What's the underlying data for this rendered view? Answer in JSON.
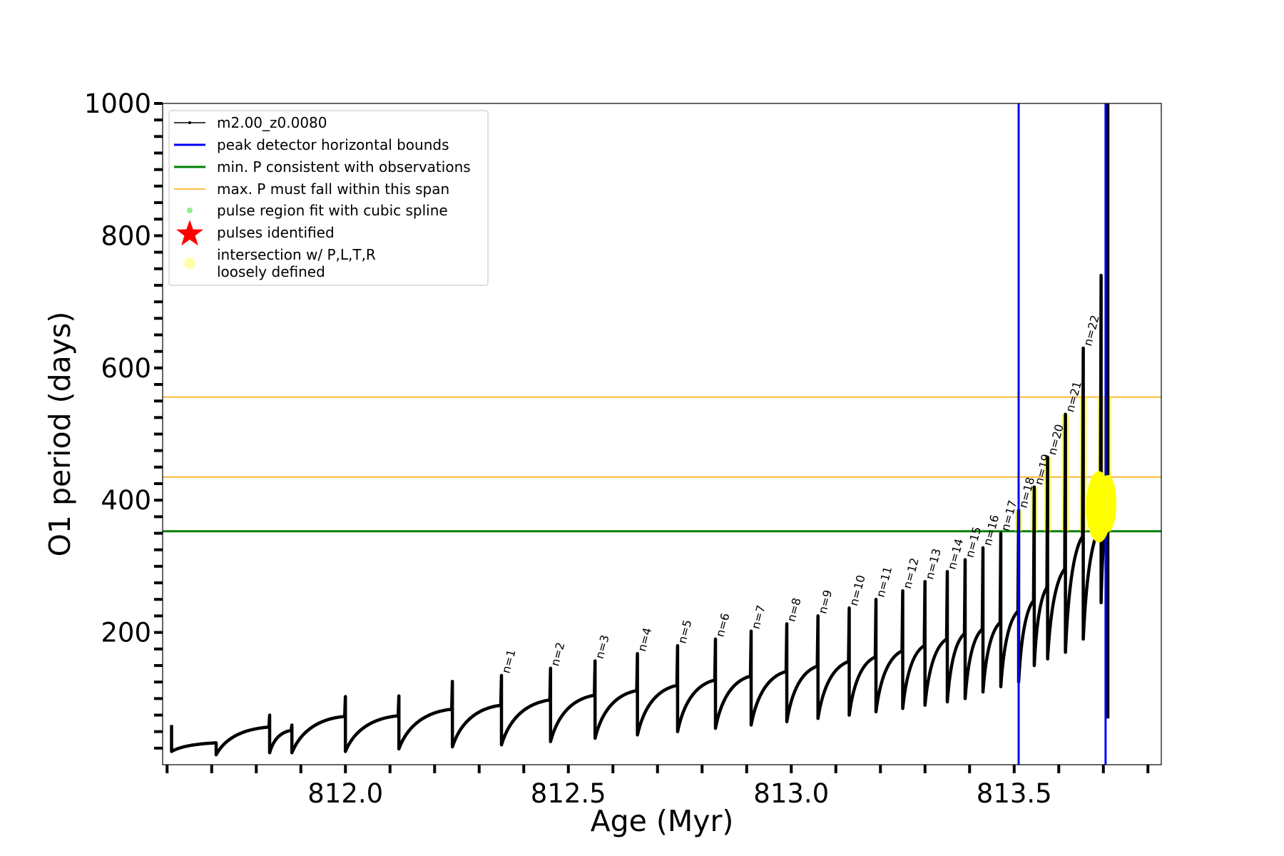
{
  "chart_data": {
    "type": "line",
    "title": "",
    "xlabel": "Age (Myr)",
    "ylabel": "O1 period (days)",
    "xlim": [
      811.59,
      813.83
    ],
    "ylim": [
      0,
      1000
    ],
    "xticks": [
      811.6,
      811.7,
      811.8,
      811.9,
      812.0,
      812.1,
      812.2,
      812.3,
      812.4,
      812.5,
      812.6,
      812.7,
      812.8,
      812.9,
      813.0,
      813.1,
      813.2,
      813.3,
      813.4,
      813.5,
      813.6,
      813.7,
      813.8
    ],
    "xtick_labels": [
      {
        "value": 812.0,
        "label": "812.0"
      },
      {
        "value": 812.5,
        "label": "812.5"
      },
      {
        "value": 813.0,
        "label": "813.0"
      },
      {
        "value": 813.5,
        "label": "813.5"
      }
    ],
    "yticks": [
      25,
      50,
      75,
      100,
      125,
      150,
      175,
      200,
      225,
      250,
      275,
      300,
      325,
      350,
      375,
      400,
      425,
      450,
      475,
      500,
      525,
      550,
      575,
      600,
      625,
      650,
      675,
      700,
      725,
      750,
      775,
      800,
      825,
      850,
      875,
      900,
      925,
      950,
      975,
      1000
    ],
    "ytick_labels": [
      {
        "value": 200,
        "label": "200"
      },
      {
        "value": 400,
        "label": "400"
      },
      {
        "value": 600,
        "label": "600"
      },
      {
        "value": 800,
        "label": "800"
      },
      {
        "value": 1000,
        "label": "1000"
      }
    ],
    "grid": false,
    "legend_position": "top-left",
    "colors": {
      "track": "#000000",
      "bounds": "#0000ff",
      "min_p": "#008000",
      "max_p": "#ffa500",
      "spline": "#90ee90",
      "pulse": "#ff0000",
      "loose": "#ffff00"
    },
    "legend": [
      {
        "label": "m2.00_z0.0080",
        "marker": "line-dot",
        "color": "#000000"
      },
      {
        "label": "peak detector horizontal bounds",
        "marker": "line-thick",
        "color": "#0000ff"
      },
      {
        "label": "min. P consistent with observations",
        "marker": "line-thick",
        "color": "#008000"
      },
      {
        "label": "max. P must fall within this span",
        "marker": "line-thin",
        "color": "#ffa500"
      },
      {
        "label": "pulse region fit with cubic spline",
        "marker": "dot",
        "color": "#90ee90"
      },
      {
        "label": "pulses identified",
        "marker": "star",
        "color": "#ff0000"
      },
      {
        "label": "intersection w/ P,L,T,R",
        "label2": "loosely defined",
        "marker": "circle",
        "color": "#ffffaa"
      }
    ],
    "vlines": [
      813.51,
      813.705
    ],
    "hlines_min_p": [
      353
    ],
    "hlines_max_p": [
      435,
      556
    ],
    "pulses": [
      {
        "x": 811.61,
        "peak": 60,
        "min": 20,
        "end": 33
      },
      {
        "x": 811.71,
        "peak": 33,
        "min": 15,
        "end": 57
      },
      {
        "x": 811.83,
        "peak": 75,
        "min": 18,
        "end": 52
      },
      {
        "x": 811.88,
        "peak": 60,
        "min": 18,
        "end": 73
      },
      {
        "x": 812.0,
        "peak": 103,
        "min": 20,
        "end": 74
      },
      {
        "x": 812.12,
        "peak": 104,
        "min": 24,
        "end": 84
      },
      {
        "x": 812.24,
        "peak": 126,
        "min": 27,
        "end": 90
      },
      {
        "x": 812.35,
        "peak": 135,
        "min": 30,
        "end": 98,
        "label": "n=1"
      },
      {
        "x": 812.46,
        "peak": 146,
        "min": 35,
        "end": 105,
        "label": "n=2"
      },
      {
        "x": 812.56,
        "peak": 157,
        "min": 40,
        "end": 112,
        "label": "n=3"
      },
      {
        "x": 812.655,
        "peak": 168,
        "min": 45,
        "end": 120,
        "label": "n=4"
      },
      {
        "x": 812.745,
        "peak": 180,
        "min": 50,
        "end": 128,
        "label": "n=5"
      },
      {
        "x": 812.83,
        "peak": 190,
        "min": 55,
        "end": 134,
        "label": "n=6"
      },
      {
        "x": 812.91,
        "peak": 202,
        "min": 60,
        "end": 141,
        "label": "n=7"
      },
      {
        "x": 812.99,
        "peak": 213,
        "min": 65,
        "end": 149,
        "label": "n=8"
      },
      {
        "x": 813.06,
        "peak": 225,
        "min": 70,
        "end": 156,
        "label": "n=9"
      },
      {
        "x": 813.13,
        "peak": 237,
        "min": 75,
        "end": 163,
        "label": "n=10"
      },
      {
        "x": 813.19,
        "peak": 250,
        "min": 80,
        "end": 172,
        "label": "n=11"
      },
      {
        "x": 813.25,
        "peak": 263,
        "min": 85,
        "end": 180,
        "label": "n=12"
      },
      {
        "x": 813.3,
        "peak": 277,
        "min": 90,
        "end": 190,
        "label": "n=13"
      },
      {
        "x": 813.35,
        "peak": 292,
        "min": 95,
        "end": 198,
        "label": "n=14"
      },
      {
        "x": 813.39,
        "peak": 310,
        "min": 100,
        "end": 205,
        "label": "n=15"
      },
      {
        "x": 813.43,
        "peak": 328,
        "min": 110,
        "end": 215,
        "label": "n=16"
      },
      {
        "x": 813.47,
        "peak": 350,
        "min": 118,
        "end": 232,
        "label": "n=17"
      },
      {
        "x": 813.51,
        "peak": 385,
        "min": 125,
        "end": 248,
        "label": "n=18"
      },
      {
        "x": 813.545,
        "peak": 420,
        "min": 150,
        "end": 268,
        "label": "n=19"
      },
      {
        "x": 813.575,
        "peak": 465,
        "min": 160,
        "end": 296,
        "label": "n=20"
      },
      {
        "x": 813.615,
        "peak": 530,
        "min": 170,
        "end": 345,
        "label": "n=21"
      },
      {
        "x": 813.655,
        "peak": 630,
        "min": 190,
        "end": 360,
        "label": "n=22"
      },
      {
        "x": 813.695,
        "peak": 740,
        "min": 245,
        "end": 380
      },
      {
        "x": 813.71,
        "peak": 1000,
        "min": 70,
        "end": 300
      }
    ]
  }
}
